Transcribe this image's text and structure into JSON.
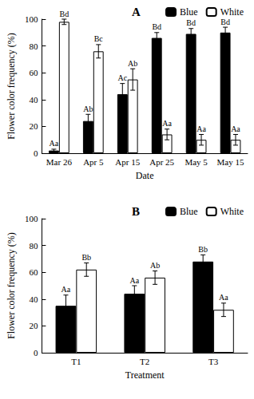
{
  "chart_data": [
    {
      "type": "bar",
      "title": "A",
      "x_label": "Date",
      "y_label": "Flower color frequency (%)",
      "categories": [
        "Mar 26",
        "Apr 5",
        "Apr 15",
        "Apr 25",
        "May 5",
        "May 15"
      ],
      "series": [
        {
          "name": "Blue",
          "color": "#000000",
          "values": [
            2,
            24,
            44,
            86,
            89,
            90
          ],
          "errors": [
            1,
            5,
            8,
            4,
            4,
            4
          ],
          "annotations": [
            "Aa",
            "Ab",
            "Ac",
            "Bd",
            "Bd",
            "Bd"
          ]
        },
        {
          "name": "White",
          "color": "#ffffff",
          "values": [
            98,
            76,
            55,
            14,
            10,
            10
          ],
          "errors": [
            2,
            5,
            8,
            4,
            4,
            4
          ],
          "annotations": [
            "Bd",
            "Bc",
            "Ab",
            "Aa",
            "Aa",
            "Aa"
          ]
        }
      ],
      "ylim": [
        0,
        100
      ],
      "yticks": [
        0,
        20,
        40,
        60,
        80,
        100
      ],
      "grid": false,
      "legend": "upper right"
    },
    {
      "type": "bar",
      "title": "B",
      "x_label": "Treatment",
      "y_label": "Flower color frequency (%)",
      "categories": [
        "T1",
        "T2",
        "T3"
      ],
      "series": [
        {
          "name": "Blue",
          "color": "#000000",
          "values": [
            35,
            44,
            68
          ],
          "errors": [
            8,
            6,
            5
          ],
          "annotations": [
            "Aa",
            "Aa",
            "Bb"
          ]
        },
        {
          "name": "White",
          "color": "#ffffff",
          "values": [
            62,
            56,
            32
          ],
          "errors": [
            5,
            5,
            5
          ],
          "annotations": [
            "Bb",
            "Ab",
            "Aa"
          ]
        }
      ],
      "ylim": [
        0,
        100
      ],
      "yticks": [
        0,
        20,
        40,
        60,
        80,
        100
      ],
      "grid": false,
      "legend": "upper right"
    }
  ]
}
